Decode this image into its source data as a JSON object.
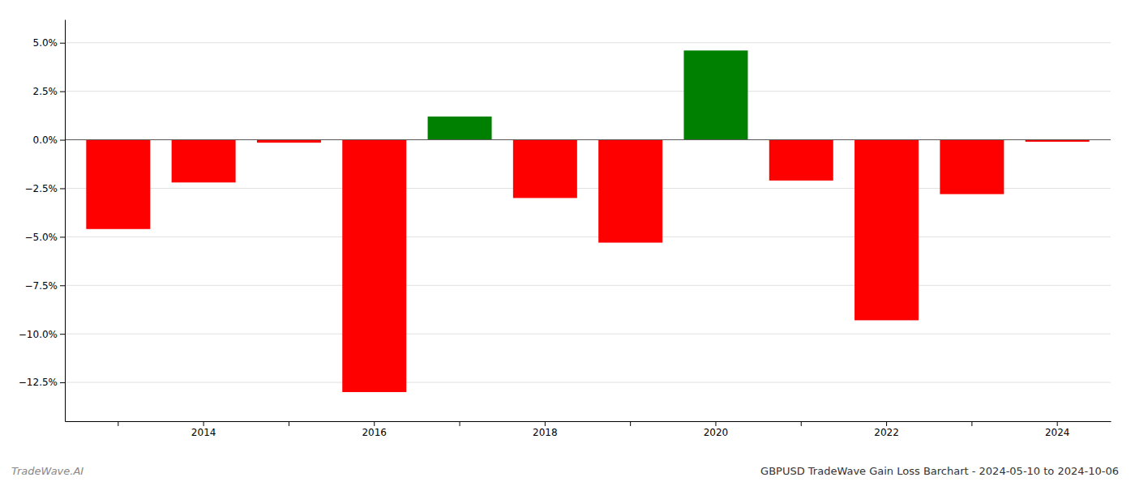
{
  "chart_data": {
    "type": "bar",
    "title": "GBPUSD TradeWave Gain Loss Barchart - 2024-05-10 to 2024-10-06",
    "annotations": [
      {
        "text": "TradeWave.AI"
      }
    ],
    "categories": [
      null,
      "2014",
      null,
      "2016",
      null,
      "2018",
      null,
      "2020",
      null,
      "2022",
      null,
      "2024"
    ],
    "values": [
      -4.6,
      -2.2,
      -0.15,
      -13.0,
      1.2,
      -3.0,
      -5.3,
      4.6,
      -2.1,
      -9.3,
      -2.8,
      -0.1
    ],
    "colors": [
      "#ff0000",
      "#ff0000",
      "#ff0000",
      "#ff0000",
      "#008000",
      "#ff0000",
      "#ff0000",
      "#008000",
      "#ff0000",
      "#ff0000",
      "#ff0000",
      "#ff0000"
    ],
    "ylim": [
      -14.5,
      6.2
    ],
    "yticks": [
      {
        "value": 5.0,
        "label": "5.0%"
      },
      {
        "value": 2.5,
        "label": "2.5%"
      },
      {
        "value": 0.0,
        "label": "0.0%"
      },
      {
        "value": -2.5,
        "label": "−2.5%"
      },
      {
        "value": -5.0,
        "label": "−5.0%"
      },
      {
        "value": -7.5,
        "label": "−7.5%"
      },
      {
        "value": -10.0,
        "label": "−10.0%"
      },
      {
        "value": -12.5,
        "label": "−12.5%"
      }
    ],
    "grid": true
  }
}
